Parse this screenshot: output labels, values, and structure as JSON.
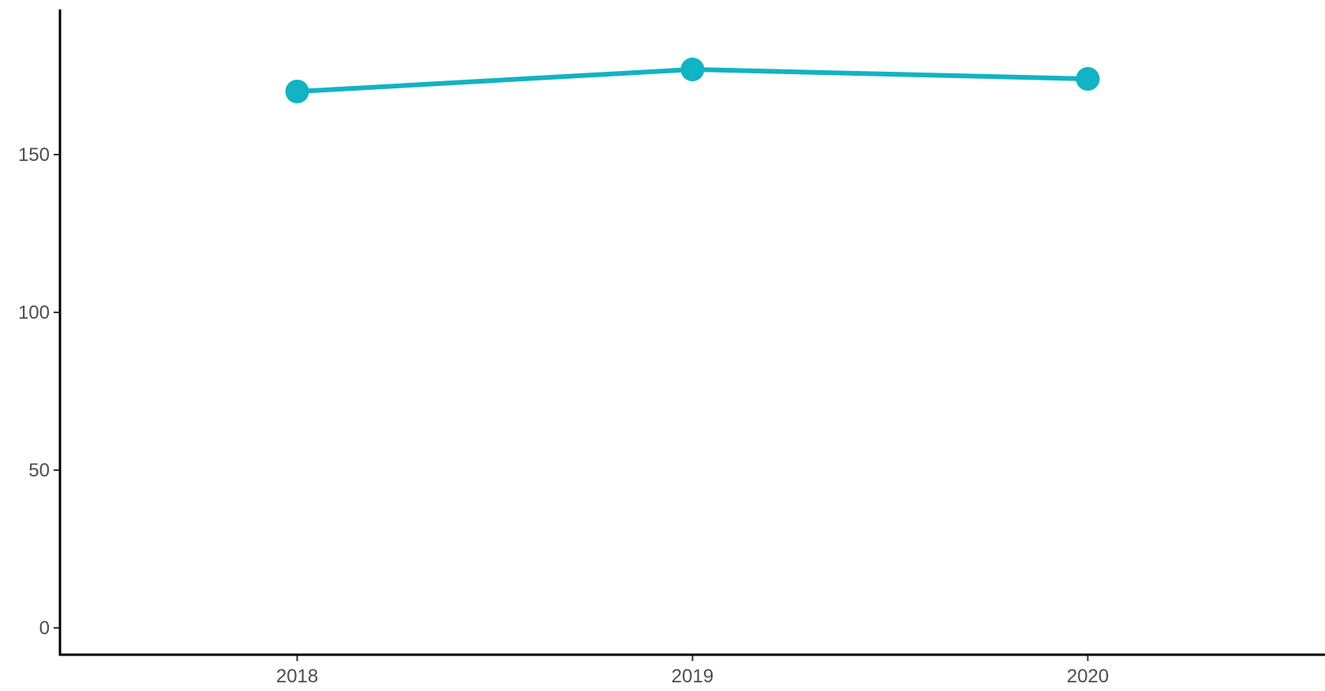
{
  "chart_data": {
    "type": "line",
    "title": "",
    "xlabel": "",
    "ylabel": "",
    "categories": [
      "2018",
      "2019",
      "2020"
    ],
    "series": [
      {
        "values": [
          170,
          177,
          174
        ]
      }
    ],
    "ylim": [
      -8.5,
      196
    ],
    "yticks": [
      0,
      50,
      100,
      150
    ],
    "ytick_labels": [
      "0",
      "50",
      "100",
      "150"
    ],
    "grid": false,
    "legend": "none",
    "colors": {
      "series": "#12B3C3",
      "axis": "#000000",
      "tick_text": "#4d4d4d"
    }
  }
}
